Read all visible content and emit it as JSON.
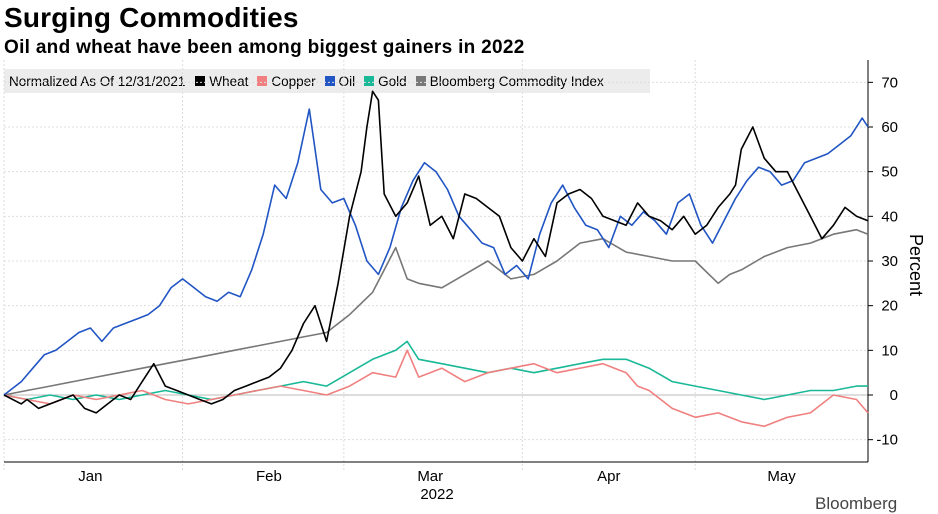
{
  "header": {
    "title": "Surging Commodities",
    "subtitle": "Oil and wheat have been among biggest gainers in 2022"
  },
  "legend": {
    "note": "Normalized As Of 12/31/2021"
  },
  "footer": {
    "source_logo": "Bloomberg"
  },
  "chart_data": {
    "type": "line",
    "title": "Surging Commodities",
    "subtitle": "Oil and wheat have been among biggest gainers in 2022",
    "ylabel": "Percent",
    "xlabel": "2022",
    "ylim": [
      -15,
      75
    ],
    "yticks": [
      -10,
      0,
      10,
      20,
      30,
      40,
      50,
      60,
      70
    ],
    "ytick_labels": [
      "-10",
      "0",
      "10",
      "20",
      "30",
      "40",
      "50",
      "60",
      "70"
    ],
    "xlim": [
      0,
      150
    ],
    "xticks": [
      {
        "label": "Jan",
        "x": 15
      },
      {
        "label": "Feb",
        "x": 46
      },
      {
        "label": "Mar",
        "x": 74
      },
      {
        "label": "Apr",
        "x": 105
      },
      {
        "label": "May",
        "x": 135
      }
    ],
    "month_boundaries": [
      0,
      31,
      59,
      90,
      120
    ],
    "x_unit": "days since 2021-12-31",
    "legend_position": "top-left",
    "series": [
      {
        "name": "Wheat",
        "color": "#000000",
        "x": [
          0,
          3,
          4,
          6,
          8,
          10,
          12,
          14,
          16,
          18,
          20,
          22,
          24,
          26,
          28,
          30,
          32,
          34,
          36,
          38,
          40,
          42,
          44,
          46,
          48,
          50,
          52,
          54,
          56,
          58,
          60,
          62,
          63,
          64,
          65,
          66,
          68,
          70,
          72,
          74,
          76,
          78,
          80,
          82,
          84,
          86,
          88,
          90,
          92,
          94,
          96,
          98,
          100,
          102,
          104,
          106,
          108,
          110,
          112,
          114,
          116,
          118,
          120,
          122,
          124,
          126,
          127,
          128,
          130,
          132,
          134,
          136,
          138,
          140,
          142,
          144,
          146,
          148,
          150
        ],
        "y": [
          0,
          -2,
          -1,
          -3,
          -2,
          -1,
          0,
          -3,
          -4,
          -2,
          0,
          -1,
          3,
          7,
          2,
          1,
          0,
          -1,
          -2,
          -1,
          1,
          2,
          3,
          4,
          6,
          10,
          16,
          20,
          12,
          25,
          40,
          50,
          60,
          68,
          66,
          45,
          40,
          43,
          49,
          38,
          40,
          35,
          45,
          44,
          42,
          40,
          33,
          30,
          35,
          31,
          43,
          45,
          46,
          44,
          40,
          39,
          38,
          43,
          40,
          39,
          37,
          40,
          36,
          38,
          42,
          45,
          47,
          55,
          60,
          53,
          50,
          50,
          45,
          40,
          35,
          38,
          42,
          40,
          39
        ]
      },
      {
        "name": "Copper",
        "color": "#f08080",
        "x": [
          0,
          4,
          8,
          12,
          16,
          20,
          24,
          28,
          32,
          36,
          40,
          44,
          48,
          52,
          56,
          60,
          64,
          68,
          70,
          72,
          76,
          80,
          84,
          88,
          92,
          96,
          100,
          104,
          108,
          110,
          112,
          116,
          120,
          124,
          128,
          132,
          136,
          140,
          144,
          148,
          150
        ],
        "y": [
          0,
          -1,
          -2,
          0,
          -1,
          0,
          1,
          -1,
          -2,
          -1,
          0,
          1,
          2,
          1,
          0,
          2,
          5,
          4,
          10,
          4,
          6,
          3,
          5,
          6,
          7,
          5,
          6,
          7,
          5,
          2,
          1,
          -3,
          -5,
          -4,
          -6,
          -7,
          -5,
          -4,
          0,
          -1,
          -4
        ]
      },
      {
        "name": "Oil",
        "color": "#2155c4",
        "x": [
          0,
          3,
          5,
          7,
          9,
          11,
          13,
          15,
          17,
          19,
          21,
          23,
          25,
          27,
          29,
          31,
          33,
          35,
          37,
          39,
          41,
          43,
          45,
          47,
          49,
          51,
          53,
          55,
          57,
          59,
          61,
          63,
          65,
          67,
          69,
          71,
          73,
          75,
          77,
          79,
          81,
          83,
          85,
          87,
          89,
          91,
          93,
          95,
          97,
          99,
          101,
          103,
          105,
          107,
          109,
          111,
          113,
          115,
          117,
          119,
          121,
          123,
          125,
          127,
          129,
          131,
          133,
          135,
          137,
          139,
          141,
          143,
          145,
          147,
          149,
          150
        ],
        "y": [
          0,
          3,
          6,
          9,
          10,
          12,
          14,
          15,
          12,
          15,
          16,
          17,
          18,
          20,
          24,
          26,
          24,
          22,
          21,
          23,
          22,
          28,
          36,
          47,
          44,
          52,
          64,
          46,
          43,
          44,
          38,
          30,
          27,
          33,
          42,
          48,
          52,
          50,
          46,
          40,
          37,
          34,
          33,
          27,
          29,
          26,
          36,
          43,
          47,
          42,
          38,
          37,
          33,
          40,
          38,
          41,
          39,
          36,
          43,
          45,
          38,
          34,
          39,
          44,
          48,
          51,
          50,
          47,
          48,
          52,
          53,
          54,
          56,
          58,
          62,
          60
        ]
      },
      {
        "name": "Gold",
        "color": "#19b897",
        "x": [
          0,
          4,
          8,
          12,
          16,
          20,
          24,
          28,
          32,
          36,
          40,
          44,
          48,
          52,
          56,
          60,
          64,
          68,
          70,
          72,
          76,
          80,
          84,
          88,
          92,
          96,
          100,
          104,
          108,
          112,
          116,
          120,
          124,
          128,
          132,
          136,
          140,
          144,
          148,
          150
        ],
        "y": [
          0,
          -1,
          0,
          -1,
          0,
          -1,
          0,
          1,
          0,
          -1,
          0,
          1,
          2,
          3,
          2,
          5,
          8,
          10,
          12,
          8,
          7,
          6,
          5,
          6,
          5,
          6,
          7,
          8,
          8,
          6,
          3,
          2,
          1,
          0,
          -1,
          0,
          1,
          1,
          2,
          2
        ]
      },
      {
        "name": "Bloomberg Commodity Index",
        "color": "#777777",
        "x": [
          0,
          4,
          8,
          12,
          16,
          20,
          24,
          28,
          32,
          36,
          40,
          44,
          48,
          52,
          56,
          60,
          64,
          66,
          68,
          70,
          72,
          76,
          80,
          84,
          88,
          92,
          96,
          100,
          104,
          108,
          112,
          116,
          120,
          124,
          126,
          128,
          132,
          136,
          140,
          144,
          148,
          150
        ],
        "y": [
          0,
          1,
          2,
          3,
          4,
          5,
          6,
          7,
          8,
          9,
          10,
          11,
          12,
          13,
          14,
          18,
          23,
          28,
          33,
          26,
          25,
          24,
          27,
          30,
          26,
          27,
          30,
          34,
          35,
          32,
          31,
          30,
          30,
          25,
          27,
          28,
          31,
          33,
          34,
          36,
          37,
          36
        ]
      }
    ]
  }
}
